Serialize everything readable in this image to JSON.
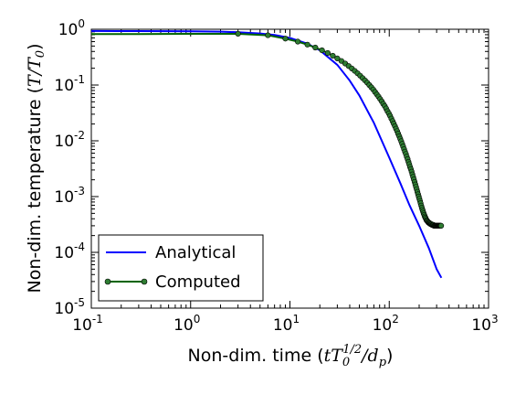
{
  "chart_data": {
    "type": "line",
    "xscale": "log",
    "yscale": "log",
    "xlim": [
      0.1,
      1000
    ],
    "ylim": [
      1e-05,
      1
    ],
    "xticks": [
      {
        "base": "10",
        "exp": "-1",
        "value": 0.1
      },
      {
        "base": "10",
        "exp": "0",
        "value": 1
      },
      {
        "base": "10",
        "exp": "1",
        "value": 10
      },
      {
        "base": "10",
        "exp": "2",
        "value": 100
      },
      {
        "base": "10",
        "exp": "3",
        "value": 1000
      }
    ],
    "yticks": [
      {
        "base": "10",
        "exp": "-5",
        "value": 1e-05
      },
      {
        "base": "10",
        "exp": "-4",
        "value": 0.0001
      },
      {
        "base": "10",
        "exp": "-3",
        "value": 0.001
      },
      {
        "base": "10",
        "exp": "-2",
        "value": 0.01
      },
      {
        "base": "10",
        "exp": "-1",
        "value": 0.1
      },
      {
        "base": "10",
        "exp": "0",
        "value": 1
      }
    ],
    "xlabel": {
      "prefix": "Non-dim. time ",
      "math_t": "tT",
      "sub": "0",
      "sup": "1/2",
      "slash": "/d",
      "sub2": "p"
    },
    "ylabel": {
      "prefix": "Non-dim. temperature ",
      "math": "T/T",
      "sub": "0"
    },
    "grid": false,
    "legend_position": "bottom-left",
    "series": [
      {
        "name": "Analytical",
        "color": "#0000ff",
        "marker": "none",
        "x": [
          0.1,
          0.3,
          1,
          2,
          3,
          5,
          7,
          10,
          15,
          20,
          30,
          40,
          50,
          70,
          100,
          130,
          160,
          200,
          250,
          300,
          335
        ],
        "y": [
          0.93,
          0.928,
          0.92,
          0.905,
          0.885,
          0.84,
          0.79,
          0.7,
          0.55,
          0.42,
          0.23,
          0.12,
          0.065,
          0.021,
          0.005,
          0.0017,
          0.0007,
          0.0003,
          0.00012,
          5e-05,
          3.5e-05
        ]
      },
      {
        "name": "Computed",
        "color": "#006400",
        "marker_color": "#2e7d32",
        "marker": "circle",
        "x": [
          0.1,
          0.3,
          1,
          3,
          6,
          9,
          12,
          15,
          18,
          21,
          24,
          27,
          30,
          33,
          36,
          39,
          42,
          45,
          48,
          51,
          54,
          57,
          60,
          63,
          66,
          69,
          72,
          75,
          78,
          81,
          84,
          87,
          90,
          93,
          96,
          99,
          102,
          105,
          108,
          111,
          114,
          117,
          120,
          123,
          126,
          129,
          132,
          135,
          138,
          141,
          144,
          147,
          150,
          153,
          156,
          159,
          162,
          165,
          168,
          171,
          174,
          177,
          180,
          183,
          186,
          189,
          192,
          195,
          198,
          201,
          204,
          207,
          210,
          213,
          216,
          219,
          222,
          225,
          228,
          231,
          234,
          237,
          240,
          243,
          246,
          249,
          252,
          255,
          258,
          261,
          264,
          267,
          270,
          273,
          276,
          279,
          282,
          285,
          288,
          291,
          294,
          297,
          300,
          303,
          306,
          309,
          312,
          315,
          318,
          321,
          324,
          327,
          330,
          333
        ],
        "y": [
          0.82,
          0.82,
          0.83,
          0.83,
          0.78,
          0.68,
          0.6,
          0.53,
          0.47,
          0.42,
          0.375,
          0.335,
          0.3,
          0.27,
          0.243,
          0.219,
          0.198,
          0.179,
          0.162,
          0.147,
          0.133,
          0.121,
          0.11,
          0.1,
          0.091,
          0.083,
          0.075,
          0.068,
          0.062,
          0.056,
          0.051,
          0.046,
          0.042,
          0.038,
          0.034,
          0.031,
          0.028,
          0.025,
          0.0225,
          0.0203,
          0.0183,
          0.0165,
          0.0149,
          0.0134,
          0.0121,
          0.0109,
          0.0098,
          0.0088,
          0.0079,
          0.0071,
          0.0064,
          0.0058,
          0.0052,
          0.0047,
          0.0042,
          0.0038,
          0.0034,
          0.0031,
          0.0028,
          0.0025,
          0.00225,
          0.00203,
          0.00183,
          0.00165,
          0.00149,
          0.00135,
          0.00122,
          0.0011,
          0.001,
          0.00091,
          0.00083,
          0.00076,
          0.00069,
          0.00063,
          0.00058,
          0.00054,
          0.0005,
          0.00047,
          0.00044,
          0.00042,
          0.0004,
          0.00038,
          0.00037,
          0.00036,
          0.00035,
          0.00034,
          0.00034,
          0.00033,
          0.00033,
          0.00032,
          0.00032,
          0.00032,
          0.00031,
          0.00031,
          0.00031,
          0.00031,
          0.0003,
          0.0003,
          0.0003,
          0.0003,
          0.0003,
          0.0003,
          0.0003,
          0.0003,
          0.0003,
          0.0003,
          0.0003,
          0.0003,
          0.0003,
          0.0003,
          0.0003,
          0.0003,
          0.0003,
          0.0003
        ]
      }
    ]
  }
}
